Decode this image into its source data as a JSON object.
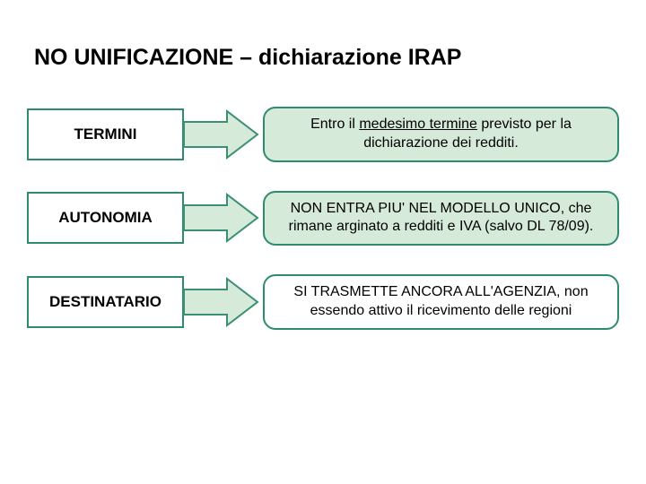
{
  "title": "NO UNIFICAZIONE – dichiarazione IRAP",
  "colors": {
    "border_green": "#2e8b6f",
    "fill_green": "#d6ead9",
    "arrow_stroke": "#3b8f73"
  },
  "rows": [
    {
      "id": "termini",
      "label": "TERMINI",
      "desc_pre": "Entro il ",
      "desc_mid": "medesimo termine",
      "desc_post": " previsto per la dichiarazione dei redditi.",
      "desc_fill": "#d6ead9",
      "has_underline": true
    },
    {
      "id": "autonomia",
      "label": "AUTONOMIA",
      "desc_plain": "NON ENTRA PIU' NEL MODELLO UNICO, che rimane arginato a redditi e IVA (salvo DL 78/09).",
      "desc_fill": "#d6ead9",
      "has_underline": false
    },
    {
      "id": "destinatario",
      "label": "DESTINATARIO",
      "desc_plain": "SI TRASMETTE ANCORA ALL'AGENZIA, non essendo attivo il ricevimento delle regioni",
      "desc_fill": "#ffffff",
      "has_underline": false
    }
  ],
  "layout": {
    "label_width": 175,
    "label_height": 58,
    "arrow_width": 86,
    "row_gap": 32,
    "desc_radius": 14,
    "font_title": 25,
    "font_label": 17,
    "font_desc": 16
  }
}
